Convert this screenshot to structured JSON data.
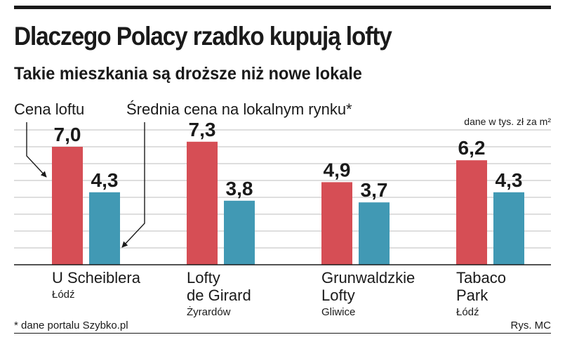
{
  "header": {
    "title": "Dlaczego Polacy rzadko kupują lofty",
    "subtitle": "Takie mieszkania są droższe niż nowe lokale"
  },
  "chart_data": {
    "type": "bar",
    "title": "Dlaczego Polacy rzadko kupują lofty",
    "subtitle": "Takie mieszkania są droższe niż nowe lokale",
    "unit_note": "dane w tys. zł za m²",
    "categories": [
      "U Scheiblera",
      "Lofty de Girard",
      "Grunwaldzkie Lofty",
      "Tabaco Park"
    ],
    "category_lines": [
      [
        "U Scheiblera"
      ],
      [
        "Lofty",
        "de Girard"
      ],
      [
        "Grunwaldzkie",
        "Lofty"
      ],
      [
        "Tabaco",
        "Park"
      ]
    ],
    "cities": [
      "Łódź",
      "Żyrardów",
      "Gliwice",
      "Łódź"
    ],
    "series": [
      {
        "name": "Cena loftu",
        "color": "#d64e55",
        "values": [
          7.0,
          7.3,
          4.9,
          6.2
        ],
        "labels": [
          "7,0",
          "7,3",
          "4,9",
          "6,2"
        ]
      },
      {
        "name": "Średnia cena na lokalnym rynku*",
        "color": "#4199b4",
        "values": [
          4.3,
          3.8,
          3.7,
          4.3
        ],
        "labels": [
          "4,3",
          "3,8",
          "3,7",
          "4,3"
        ]
      }
    ],
    "ylim": [
      0,
      8
    ],
    "grid": true,
    "legend": "top-left annotations with arrows"
  },
  "footer": {
    "note": "* dane portalu Szybko.pl",
    "credit": "Rys. MC"
  }
}
